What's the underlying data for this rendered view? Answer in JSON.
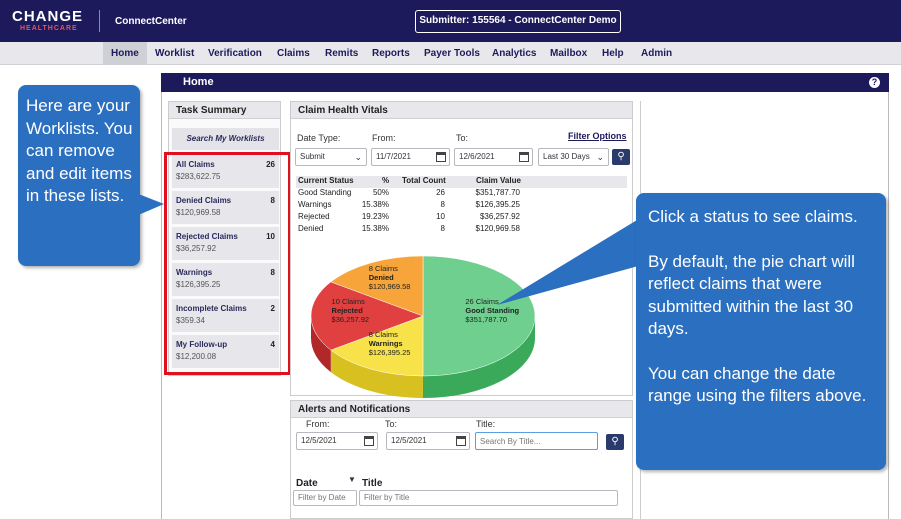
{
  "header": {
    "logo_main": "CHANGE",
    "logo_sub": "HEALTHCARE",
    "app_name": "ConnectCenter",
    "submitter": "Submitter: 155564 - ConnectCenter Demo"
  },
  "nav": [
    "Home",
    "Worklist",
    "Verification",
    "Claims",
    "Remits",
    "Reports",
    "Payer Tools",
    "Analytics",
    "Mailbox",
    "Help",
    "Admin"
  ],
  "page_title": "Home",
  "help_icon": "?",
  "task_summary": {
    "title": "Task Summary",
    "search_label": "Search My Worklists",
    "items": [
      {
        "name": "All Claims",
        "count": "26",
        "value": "$283,622.75"
      },
      {
        "name": "Denied Claims",
        "count": "8",
        "value": "$120,969.58"
      },
      {
        "name": "Rejected Claims",
        "count": "10",
        "value": "$36,257.92"
      },
      {
        "name": "Warnings",
        "count": "8",
        "value": "$126,395.25"
      },
      {
        "name": "Incomplete Claims",
        "count": "2",
        "value": "$359.34"
      },
      {
        "name": "My Follow-up",
        "count": "4",
        "value": "$12,200.08"
      }
    ]
  },
  "vitals": {
    "title": "Claim Health Vitals",
    "date_type_label": "Date Type:",
    "from_label": "From:",
    "to_label": "To:",
    "filter_options": "Filter Options",
    "date_type_value": "Submit",
    "from_value": "11/7/2021",
    "to_value": "12/6/2021",
    "range_value": "Last 30 Days",
    "columns": [
      "Current Status",
      "%",
      "Total Count",
      "Claim Value"
    ],
    "rows": [
      {
        "status": "Good Standing",
        "pct": "50%",
        "count": "26",
        "value": "$351,787.70"
      },
      {
        "status": "Warnings",
        "pct": "15.38%",
        "count": "8",
        "value": "$126,395.25"
      },
      {
        "status": "Rejected",
        "pct": "19.23%",
        "count": "10",
        "value": "$36,257.92"
      },
      {
        "status": "Denied",
        "pct": "15.38%",
        "count": "8",
        "value": "$120,969.58"
      }
    ]
  },
  "chart_data": {
    "type": "pie",
    "categories": [
      "Good Standing",
      "Warnings",
      "Rejected",
      "Denied"
    ],
    "values": [
      50,
      15.38,
      19.23,
      15.38
    ],
    "counts": [
      "26 Claims",
      "8 Claims",
      "10 Claims",
      "8 Claims"
    ],
    "labels": [
      "Good Standing",
      "Warnings",
      "Rejected",
      "Denied"
    ],
    "amounts": [
      "$351,787.70",
      "$126,395.25",
      "$36,257.92",
      "$120,969.58"
    ],
    "colors": [
      "#6fcf8f",
      "#f7e24a",
      "#e04040",
      "#f7a53a"
    ],
    "side_colors": [
      "#3aaa5a",
      "#d8c020",
      "#b02828",
      "#d88020"
    ]
  },
  "alerts": {
    "title": "Alerts and Notifications",
    "from_label": "From:",
    "to_label": "To:",
    "title_label": "Title:",
    "from_value": "12/5/2021",
    "to_value": "12/5/2021",
    "search_placeholder": "Search By Title...",
    "col_date": "Date",
    "col_title": "Title",
    "filter_date": "Filter by Date",
    "filter_title": "Filter by Title"
  },
  "callout_left": "Here are your Worklists. You can remove and edit items in these lists.",
  "callout_right": {
    "p1": "Click a status to see claims.",
    "p2": "By default, the pie chart will reflect claims that were submitted within the last 30 days.",
    "p3": "You can change the date range using the filters above."
  }
}
